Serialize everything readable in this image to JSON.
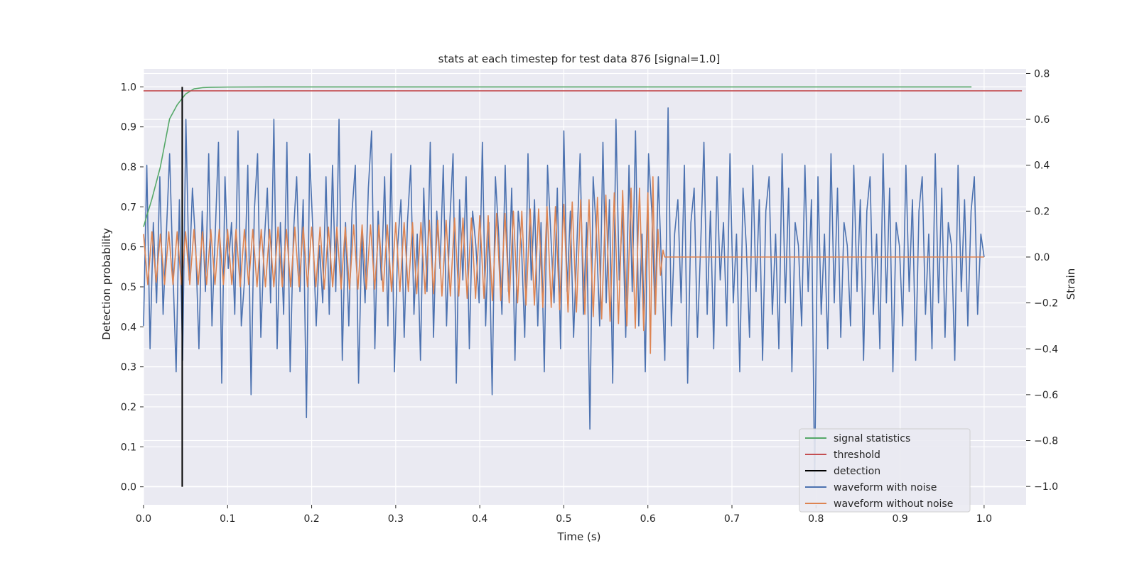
{
  "chart_data": {
    "type": "line",
    "title": "stats at each timestep for test data 876 [signal=1.0]",
    "xlabel": "Time (s)",
    "ylabel_left": "Detection probability",
    "ylabel_right": "Strain",
    "xlim": [
      0.0,
      1.05
    ],
    "ylim_left": [
      -0.045,
      1.045
    ],
    "ylim_right": [
      -1.08,
      0.82
    ],
    "x_ticks": [
      0.0,
      0.1,
      0.2,
      0.3,
      0.4,
      0.5,
      0.6,
      0.7,
      0.8,
      0.9,
      1.0
    ],
    "x_tick_labels": [
      "0.0",
      "0.1",
      "0.2",
      "0.3",
      "0.4",
      "0.5",
      "0.6",
      "0.7",
      "0.8",
      "0.9",
      "1.0"
    ],
    "y_left_ticks": [
      0.0,
      0.1,
      0.2,
      0.3,
      0.4,
      0.5,
      0.6,
      0.7,
      0.8,
      0.9,
      1.0
    ],
    "y_left_tick_labels": [
      "0.0",
      "0.1",
      "0.2",
      "0.3",
      "0.4",
      "0.5",
      "0.6",
      "0.7",
      "0.8",
      "0.9",
      "1.0"
    ],
    "y_right_ticks": [
      -1.0,
      -0.8,
      -0.6,
      -0.4,
      -0.2,
      0.0,
      0.2,
      0.4,
      0.6,
      0.8
    ],
    "y_right_tick_labels": [
      "−1.0",
      "−0.8",
      "−0.6",
      "−0.4",
      "−0.2",
      "0.0",
      "0.2",
      "0.4",
      "0.6",
      "0.8"
    ],
    "grid": true,
    "legend_position": "lower-right",
    "style": {
      "background": "#eaeaf2",
      "grid_color": "#ffffff"
    },
    "series": [
      {
        "name": "signal statistics",
        "axis": "left",
        "color": "#55a868",
        "x": [
          0.0,
          0.01,
          0.02,
          0.031,
          0.04,
          0.05,
          0.06,
          0.07,
          0.08,
          0.1,
          0.15,
          0.3,
          0.5,
          0.7,
          0.9,
          0.985
        ],
        "y": [
          0.65,
          0.72,
          0.8,
          0.92,
          0.955,
          0.982,
          0.995,
          0.998,
          0.999,
          0.9995,
          0.9999,
          0.9999,
          0.9999,
          0.9999,
          0.9999,
          0.9999
        ]
      },
      {
        "name": "threshold",
        "axis": "left",
        "color": "#c44e52",
        "x": [
          0.0,
          1.045
        ],
        "y": [
          0.99,
          0.99
        ]
      },
      {
        "name": "detection",
        "axis": "left",
        "color": "#000000",
        "x": [
          0.046,
          0.046
        ],
        "y": [
          0.0,
          1.0
        ]
      },
      {
        "name": "waveform with noise",
        "axis": "right",
        "color": "#4c72b0",
        "x_start": 0.0,
        "x_end": 1.0,
        "y": [
          -0.3,
          0.4,
          -0.4,
          0.15,
          -0.2,
          0.35,
          -0.25,
          0.1,
          0.45,
          -0.05,
          -0.5,
          0.25,
          -0.45,
          0.6,
          -0.1,
          0.3,
          0.05,
          -0.4,
          0.2,
          -0.15,
          0.45,
          -0.3,
          0.1,
          0.5,
          -0.55,
          0.35,
          -0.05,
          0.15,
          -0.25,
          0.55,
          -0.3,
          -0.1,
          0.4,
          -0.6,
          0.2,
          0.45,
          -0.35,
          0.05,
          0.3,
          -0.2,
          0.6,
          -0.4,
          0.15,
          -0.25,
          0.5,
          -0.5,
          0.1,
          0.35,
          -0.15,
          0.25,
          -0.7,
          0.45,
          0.1,
          -0.3,
          0.05,
          -0.2,
          0.35,
          -0.25,
          0.4,
          -0.15,
          0.6,
          -0.45,
          0.15,
          -0.3,
          0.2,
          0.4,
          -0.55,
          0.1,
          -0.2,
          0.3,
          0.55,
          -0.4,
          0.2,
          -0.1,
          0.35,
          -0.3,
          0.45,
          -0.5,
          0.05,
          0.25,
          -0.35,
          0.15,
          0.4,
          -0.25,
          0.1,
          -0.45,
          0.3,
          -0.15,
          0.5,
          -0.35,
          0.2,
          -0.05,
          0.4,
          -0.3,
          0.15,
          0.45,
          -0.55,
          0.25,
          -0.1,
          0.35,
          -0.4,
          0.2,
          0.05,
          -0.2,
          0.5,
          -0.3,
          0.15,
          -0.6,
          0.35,
          0.1,
          -0.25,
          0.4,
          -0.15,
          0.3,
          -0.45,
          0.2,
          0.05,
          -0.35,
          0.45,
          -0.1,
          0.25,
          -0.3,
          0.15,
          -0.5,
          0.4,
          0.1,
          -0.2,
          0.3,
          -0.4,
          0.55,
          -0.15,
          0.2,
          -0.35,
          0.05,
          0.45,
          -0.25,
          0.15,
          -0.75,
          0.35,
          0.1,
          -0.3,
          0.5,
          -0.2,
          0.25,
          -0.55,
          0.6,
          -0.1,
          0.2,
          -0.35,
          0.4,
          -0.15,
          0.55,
          -0.3,
          0.1,
          -0.5,
          0.45,
          0.2,
          -0.25,
          0.35,
          -0.05,
          -0.45,
          0.65,
          -0.3,
          0.1,
          0.25,
          -0.2,
          0.4,
          -0.55,
          0.15,
          0.3,
          -0.35,
          0.05,
          0.5,
          -0.25,
          0.2,
          -0.4,
          0.35,
          -0.1,
          0.15,
          -0.3,
          0.45,
          -0.2,
          0.1,
          -0.5,
          0.3,
          0.05,
          -0.35,
          0.4,
          -0.15,
          0.25,
          -0.45,
          0.2,
          0.35,
          -0.25,
          0.1,
          -0.4,
          0.45,
          -0.2,
          0.3,
          -0.5,
          0.15,
          0.05,
          -0.3,
          0.4,
          -0.15,
          0.25,
          -1.0,
          0.35,
          -0.25,
          0.1,
          -0.4,
          0.45,
          -0.2,
          0.3,
          -0.35,
          0.15,
          0.05,
          -0.3,
          0.4,
          -0.15,
          0.25,
          -0.45,
          0.2,
          0.35,
          -0.25,
          0.1,
          -0.4,
          0.45,
          -0.2,
          0.3,
          -0.5,
          0.15,
          0.05,
          -0.3,
          0.4,
          -0.15,
          0.25,
          -0.45,
          0.2,
          0.35,
          -0.25,
          0.1,
          -0.4,
          0.45,
          -0.2,
          0.3,
          -0.35,
          0.15,
          0.05,
          -0.45,
          0.4,
          -0.15,
          0.25,
          -0.3,
          0.2,
          0.35,
          -0.25,
          0.1,
          0.0
        ]
      },
      {
        "name": "waveform without noise",
        "axis": "right",
        "color": "#dd8452",
        "x": [
          0.0,
          0.005,
          0.01,
          0.015,
          0.02,
          0.025,
          0.03,
          0.035,
          0.04,
          0.045,
          0.05,
          0.055,
          0.06,
          0.065,
          0.07,
          0.075,
          0.08,
          0.085,
          0.09,
          0.095,
          0.1,
          0.105,
          0.11,
          0.115,
          0.12,
          0.125,
          0.13,
          0.135,
          0.14,
          0.145,
          0.15,
          0.155,
          0.16,
          0.165,
          0.17,
          0.175,
          0.18,
          0.185,
          0.19,
          0.195,
          0.2,
          0.205,
          0.21,
          0.215,
          0.22,
          0.225,
          0.23,
          0.235,
          0.24,
          0.245,
          0.25,
          0.255,
          0.26,
          0.265,
          0.27,
          0.275,
          0.28,
          0.285,
          0.29,
          0.295,
          0.3,
          0.305,
          0.31,
          0.315,
          0.32,
          0.325,
          0.33,
          0.335,
          0.34,
          0.345,
          0.35,
          0.355,
          0.36,
          0.365,
          0.37,
          0.375,
          0.38,
          0.385,
          0.39,
          0.395,
          0.4,
          0.405,
          0.41,
          0.415,
          0.42,
          0.425,
          0.43,
          0.435,
          0.44,
          0.445,
          0.45,
          0.455,
          0.46,
          0.465,
          0.47,
          0.475,
          0.48,
          0.485,
          0.49,
          0.495,
          0.5,
          0.505,
          0.51,
          0.515,
          0.52,
          0.525,
          0.53,
          0.535,
          0.54,
          0.545,
          0.55,
          0.555,
          0.56,
          0.565,
          0.57,
          0.575,
          0.58,
          0.585,
          0.59,
          0.595,
          0.6,
          0.603,
          0.606,
          0.609,
          0.612,
          0.615,
          0.618,
          0.62,
          0.625,
          0.7,
          0.8,
          0.9,
          1.0
        ],
        "y": [
          0.1,
          -0.12,
          0.11,
          -0.11,
          0.1,
          -0.12,
          0.11,
          -0.12,
          0.11,
          -0.12,
          0.11,
          -0.12,
          0.12,
          -0.12,
          0.11,
          -0.12,
          0.12,
          -0.12,
          0.12,
          -0.12,
          0.12,
          -0.12,
          0.12,
          -0.13,
          0.12,
          -0.12,
          0.12,
          -0.13,
          0.12,
          -0.13,
          0.12,
          -0.13,
          0.13,
          -0.13,
          0.12,
          -0.13,
          0.13,
          -0.13,
          0.13,
          -0.13,
          0.13,
          -0.13,
          0.13,
          -0.14,
          0.13,
          -0.13,
          0.13,
          -0.14,
          0.13,
          -0.14,
          0.14,
          -0.14,
          0.14,
          -0.14,
          0.14,
          -0.14,
          0.14,
          -0.15,
          0.14,
          -0.15,
          0.15,
          -0.15,
          0.15,
          -0.15,
          0.15,
          -0.16,
          0.15,
          -0.16,
          0.16,
          -0.16,
          0.16,
          -0.17,
          0.16,
          -0.17,
          0.17,
          -0.17,
          0.17,
          -0.18,
          0.17,
          -0.18,
          0.18,
          -0.18,
          0.18,
          -0.19,
          0.19,
          -0.19,
          0.19,
          -0.2,
          0.2,
          -0.2,
          0.2,
          -0.21,
          0.21,
          -0.21,
          0.21,
          -0.22,
          0.22,
          -0.22,
          0.22,
          -0.23,
          0.23,
          -0.24,
          0.24,
          -0.24,
          0.25,
          -0.25,
          0.25,
          -0.26,
          0.26,
          -0.27,
          0.27,
          -0.28,
          0.28,
          -0.29,
          0.29,
          -0.3,
          0.3,
          -0.31,
          0.3,
          -0.32,
          0.28,
          -0.42,
          0.35,
          -0.25,
          0.12,
          -0.08,
          0.03,
          0.0,
          0.0,
          0.0,
          0.0,
          0.0,
          0.0
        ]
      }
    ]
  }
}
